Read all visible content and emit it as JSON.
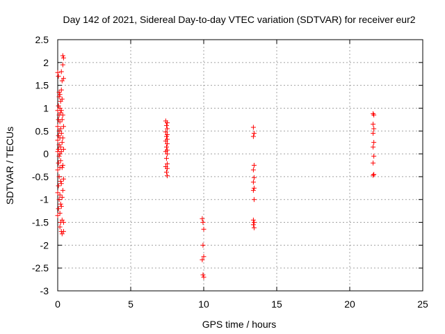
{
  "chart_data": {
    "type": "scatter",
    "title": "Day 142 of 2021, Sidereal Day-to-day VTEC variation (SDTVAR) for receiver eur2",
    "xlabel": "GPS time / hours",
    "ylabel": "SDTVAR / TECUs",
    "xlim": [
      0,
      25
    ],
    "ylim": [
      -3,
      2.5
    ],
    "xticks": [
      0,
      5,
      10,
      15,
      20,
      25
    ],
    "yticks": [
      -3,
      -2.5,
      -2,
      -1.5,
      -1,
      -0.5,
      0,
      0.5,
      1,
      1.5,
      2,
      2.5
    ],
    "xtick_labels": [
      "0",
      "5",
      "10",
      "15",
      "20",
      "25"
    ],
    "ytick_labels": [
      "-3",
      "-2.5",
      "-2",
      "-1.5",
      "-1",
      "-0.5",
      "0",
      "0.5",
      "1",
      "1.5",
      "2",
      "2.5"
    ],
    "grid": true,
    "marker": "+",
    "point_color": "#ff0000",
    "series": [
      {
        "points": [
          [
            0.0,
            1.78
          ],
          [
            0.05,
            1.7
          ],
          [
            0.1,
            1.35
          ],
          [
            0.1,
            1.25
          ],
          [
            0.05,
            1.05
          ],
          [
            0.0,
            0.95
          ],
          [
            0.1,
            0.85
          ],
          [
            0.05,
            0.75
          ],
          [
            0.0,
            0.6
          ],
          [
            0.1,
            0.5
          ],
          [
            0.05,
            0.4
          ],
          [
            0.0,
            0.3
          ],
          [
            0.1,
            0.2
          ],
          [
            0.05,
            0.1
          ],
          [
            0.0,
            0.05
          ],
          [
            0.1,
            -0.05
          ],
          [
            0.05,
            -0.2
          ],
          [
            0.0,
            -0.35
          ],
          [
            0.1,
            -0.5
          ],
          [
            0.05,
            -0.7
          ],
          [
            0.0,
            -0.85
          ],
          [
            0.1,
            -1.0
          ],
          [
            0.05,
            -1.2
          ],
          [
            0.0,
            -1.35
          ],
          [
            0.15,
            1.3
          ],
          [
            0.2,
            1.15
          ],
          [
            0.15,
            1.0
          ],
          [
            0.2,
            0.9
          ],
          [
            0.15,
            0.7
          ],
          [
            0.2,
            0.55
          ],
          [
            0.15,
            0.35
          ],
          [
            0.2,
            0.15
          ],
          [
            0.15,
            0.0
          ],
          [
            0.2,
            -0.15
          ],
          [
            0.15,
            -0.3
          ],
          [
            0.2,
            -0.6
          ],
          [
            0.15,
            -0.9
          ],
          [
            0.2,
            -1.1
          ],
          [
            0.15,
            -1.3
          ],
          [
            0.2,
            -1.5
          ],
          [
            0.15,
            -1.6
          ],
          [
            0.25,
            1.8
          ],
          [
            0.3,
            1.6
          ],
          [
            0.25,
            1.4
          ],
          [
            0.3,
            1.2
          ],
          [
            0.25,
            0.95
          ],
          [
            0.3,
            0.75
          ],
          [
            0.25,
            0.45
          ],
          [
            0.3,
            0.25
          ],
          [
            0.25,
            0.05
          ],
          [
            0.3,
            -0.3
          ],
          [
            0.25,
            -0.65
          ],
          [
            0.3,
            -0.95
          ],
          [
            0.25,
            -1.15
          ],
          [
            0.3,
            -1.45
          ],
          [
            0.25,
            -1.7
          ],
          [
            0.3,
            -1.75
          ],
          [
            0.35,
            2.15
          ],
          [
            0.4,
            2.1
          ],
          [
            0.35,
            1.95
          ],
          [
            0.4,
            1.65
          ],
          [
            0.35,
            0.85
          ],
          [
            0.4,
            0.6
          ],
          [
            0.35,
            0.35
          ],
          [
            0.4,
            0.1
          ],
          [
            0.35,
            -0.25
          ],
          [
            0.4,
            -0.55
          ],
          [
            0.35,
            -0.8
          ],
          [
            0.4,
            -1.5
          ],
          [
            0.4,
            -1.7
          ],
          [
            7.4,
            0.72
          ],
          [
            7.5,
            0.68
          ],
          [
            7.45,
            0.62
          ],
          [
            7.5,
            0.55
          ],
          [
            7.4,
            0.48
          ],
          [
            7.5,
            0.42
          ],
          [
            7.45,
            0.38
          ],
          [
            7.5,
            0.32
          ],
          [
            7.4,
            0.28
          ],
          [
            7.5,
            0.22
          ],
          [
            7.45,
            0.15
          ],
          [
            7.5,
            0.08
          ],
          [
            7.4,
            0.05
          ],
          [
            7.5,
            0.0
          ],
          [
            7.45,
            -0.1
          ],
          [
            7.5,
            -0.22
          ],
          [
            7.4,
            -0.28
          ],
          [
            7.5,
            -0.32
          ],
          [
            7.45,
            -0.4
          ],
          [
            7.5,
            -0.48
          ],
          [
            9.9,
            -1.42
          ],
          [
            9.95,
            -1.5
          ],
          [
            10.0,
            -1.65
          ],
          [
            9.95,
            -2.0
          ],
          [
            10.0,
            -2.25
          ],
          [
            9.9,
            -2.32
          ],
          [
            9.95,
            -2.65
          ],
          [
            10.0,
            -2.7
          ],
          [
            13.4,
            0.58
          ],
          [
            13.45,
            0.45
          ],
          [
            13.4,
            0.38
          ],
          [
            13.45,
            -0.25
          ],
          [
            13.4,
            -0.35
          ],
          [
            13.45,
            -0.52
          ],
          [
            13.4,
            -0.62
          ],
          [
            13.45,
            -0.75
          ],
          [
            13.4,
            -0.8
          ],
          [
            13.45,
            -1.0
          ],
          [
            13.4,
            -1.45
          ],
          [
            13.45,
            -1.5
          ],
          [
            13.4,
            -1.55
          ],
          [
            13.45,
            -1.62
          ],
          [
            21.6,
            0.88
          ],
          [
            21.65,
            0.85
          ],
          [
            21.6,
            0.65
          ],
          [
            21.65,
            0.55
          ],
          [
            21.6,
            0.45
          ],
          [
            21.65,
            0.25
          ],
          [
            21.6,
            0.15
          ],
          [
            21.65,
            -0.05
          ],
          [
            21.6,
            -0.2
          ],
          [
            21.65,
            -0.45
          ],
          [
            21.6,
            -0.47
          ]
        ]
      }
    ]
  }
}
